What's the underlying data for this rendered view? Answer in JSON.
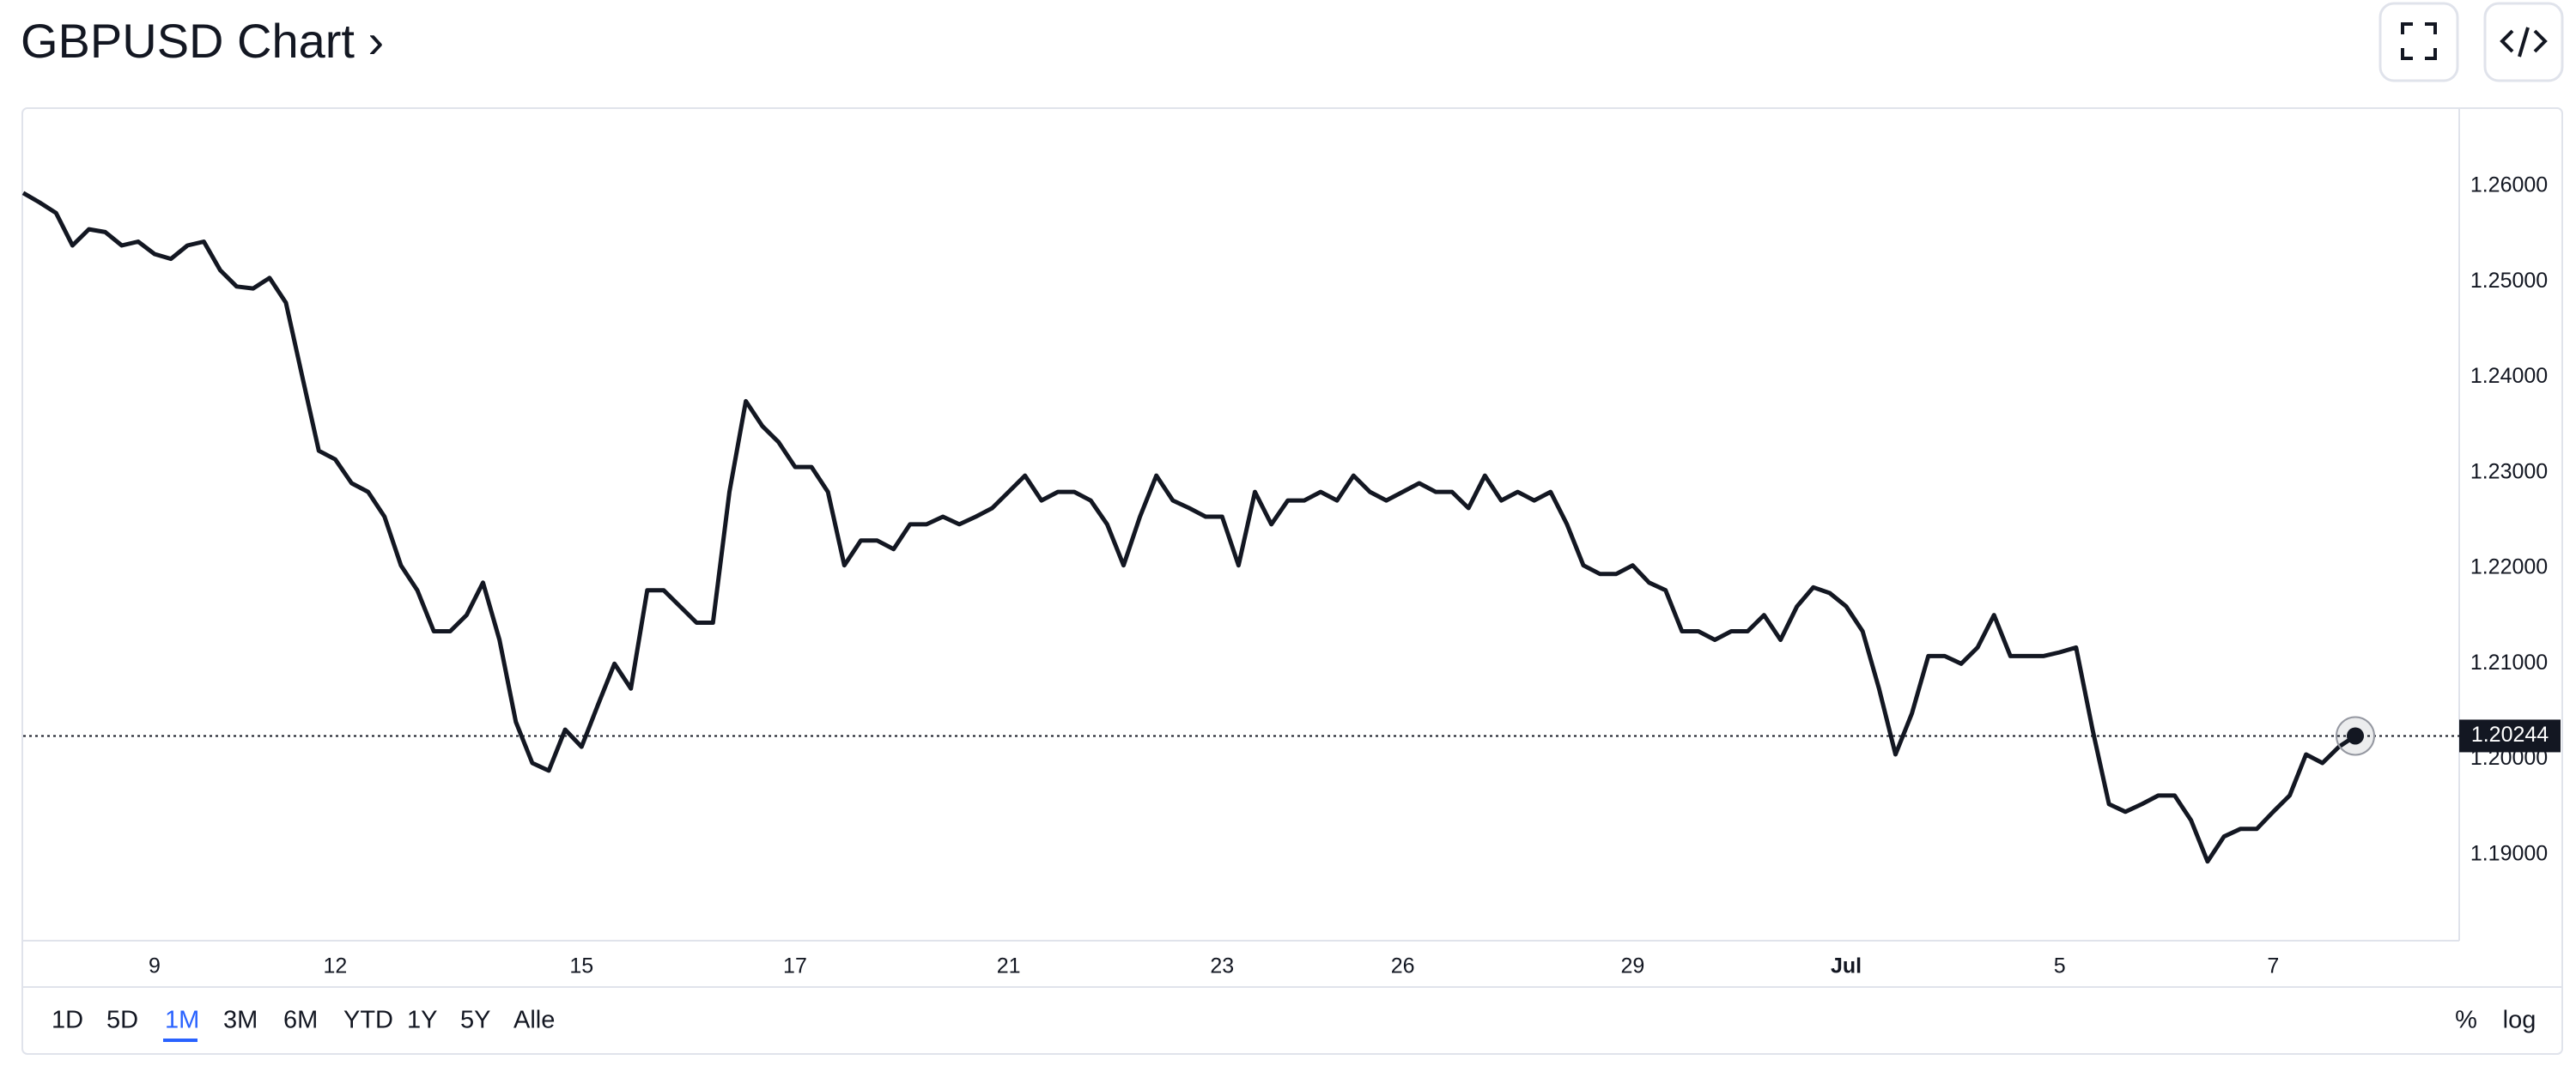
{
  "chart_data": {
    "type": "line",
    "title": "GBPUSD Chart ›",
    "color": "#131722",
    "grid": false,
    "log_scale": false,
    "current_price": 1.20244,
    "ylim": [
      1.181,
      1.268
    ],
    "yticks": [
      {
        "value": 1.19,
        "label": "1.19000"
      },
      {
        "value": 1.2,
        "label": "1.20000"
      },
      {
        "value": 1.21,
        "label": "1.21000"
      },
      {
        "value": 1.22,
        "label": "1.22000"
      },
      {
        "value": 1.23,
        "label": "1.23000"
      },
      {
        "value": 1.24,
        "label": "1.24000"
      },
      {
        "value": 1.25,
        "label": "1.25000"
      },
      {
        "value": 1.26,
        "label": "1.26000"
      }
    ],
    "categories": [
      null,
      null,
      null,
      null,
      null,
      null,
      null,
      null,
      "9",
      null,
      null,
      null,
      null,
      null,
      null,
      null,
      null,
      null,
      null,
      "12",
      null,
      null,
      null,
      null,
      null,
      null,
      null,
      null,
      null,
      null,
      null,
      null,
      null,
      null,
      "15",
      null,
      null,
      null,
      null,
      null,
      null,
      null,
      null,
      null,
      null,
      null,
      null,
      "17",
      null,
      null,
      null,
      null,
      null,
      null,
      null,
      null,
      null,
      null,
      null,
      null,
      "21",
      null,
      null,
      null,
      null,
      null,
      null,
      null,
      null,
      null,
      null,
      null,
      null,
      "23",
      null,
      null,
      null,
      null,
      null,
      null,
      null,
      null,
      null,
      null,
      "26",
      null,
      null,
      null,
      null,
      null,
      null,
      null,
      null,
      null,
      null,
      null,
      null,
      null,
      "29",
      null,
      null,
      null,
      null,
      null,
      null,
      null,
      null,
      null,
      null,
      null,
      null,
      "Jul",
      null,
      null,
      null,
      null,
      null,
      null,
      null,
      null,
      null,
      null,
      null,
      null,
      "5",
      null,
      null,
      null,
      null,
      null,
      null,
      null,
      null,
      null,
      null,
      null,
      null,
      "7",
      null,
      null,
      null,
      null,
      null
    ],
    "values": [
      1.2593,
      1.2583,
      1.2572,
      1.2538,
      1.2555,
      1.2552,
      1.2538,
      1.2542,
      1.2529,
      1.2524,
      1.2538,
      1.2542,
      1.2512,
      1.2495,
      1.2493,
      1.2504,
      1.2478,
      1.24,
      1.2323,
      1.2314,
      1.2289,
      1.228,
      1.2254,
      1.2203,
      1.2177,
      1.2134,
      1.2134,
      1.2151,
      1.2185,
      1.2125,
      1.2039,
      1.1996,
      1.1988,
      1.2031,
      1.2013,
      1.2057,
      1.21,
      1.2074,
      1.2177,
      1.2177,
      1.216,
      1.2143,
      1.2143,
      1.228,
      1.2375,
      1.2349,
      1.2332,
      1.2306,
      1.2306,
      1.228,
      1.2203,
      1.2229,
      1.2229,
      1.222,
      1.2246,
      1.2246,
      1.2254,
      1.2246,
      1.2254,
      1.2263,
      1.228,
      1.2297,
      1.2271,
      1.228,
      1.228,
      1.2271,
      1.2246,
      1.2203,
      1.2254,
      1.2297,
      1.2271,
      1.2263,
      1.2254,
      1.2254,
      1.2203,
      1.228,
      1.2246,
      1.2271,
      1.2271,
      1.228,
      1.2271,
      1.2297,
      1.228,
      1.2271,
      1.228,
      1.2289,
      1.228,
      1.228,
      1.2263,
      1.2297,
      1.2271,
      1.228,
      1.2271,
      1.228,
      1.2246,
      1.2203,
      1.2194,
      1.2194,
      1.2203,
      1.2185,
      1.2177,
      1.2134,
      1.2134,
      1.2125,
      1.2134,
      1.2134,
      1.2151,
      1.2125,
      1.216,
      1.218,
      1.2174,
      1.216,
      1.2134,
      1.2074,
      1.2005,
      1.2048,
      1.2108,
      1.2108,
      1.21,
      1.2117,
      1.2151,
      1.2108,
      1.2108,
      1.2108,
      1.2112,
      1.2117,
      1.2031,
      1.1953,
      1.1945,
      1.1953,
      1.1962,
      1.1962,
      1.1936,
      1.1893,
      1.1919,
      1.1927,
      1.1927,
      1.1945,
      1.1962,
      1.2005,
      1.1996,
      1.2013,
      1.20244
    ]
  },
  "range_bar": {
    "ranges": [
      "1D",
      "5D",
      "1M",
      "3M",
      "6M",
      "YTD",
      "1Y",
      "5Y",
      "Alle"
    ],
    "selected_range": "1M",
    "options": [
      "%",
      "log"
    ]
  }
}
